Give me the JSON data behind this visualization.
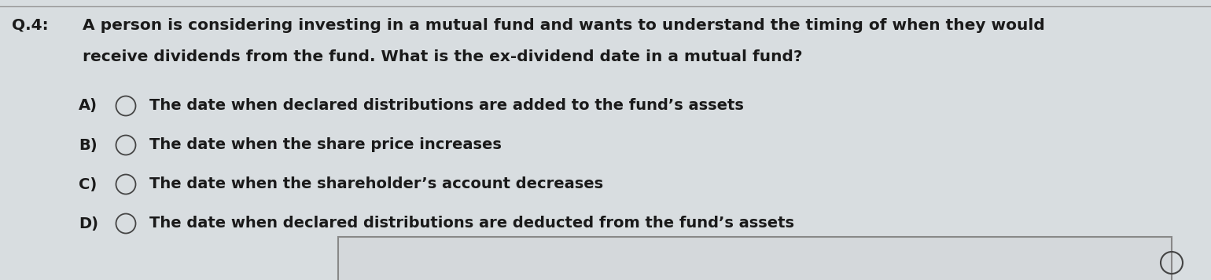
{
  "background_color": "#d8dde0",
  "question_label": "Q.4:",
  "question_text_line1": "A person is considering investing in a mutual fund and wants to understand the timing of when they would",
  "question_text_line2": "receive dividends from the fund. What is the ex-dividend date in a mutual fund?",
  "options": [
    {
      "label": "A)",
      "text": "The date when declared distributions are added to the fund’s assets"
    },
    {
      "label": "B)",
      "text": "The date when the share price increases"
    },
    {
      "label": "C)",
      "text": "The date when the shareholder’s account decreases"
    },
    {
      "label": "D)",
      "text": "The date when declared distributions are deducted from the fund’s assets"
    }
  ],
  "font_color": "#1a1a1a",
  "font_family": "DejaVu Sans",
  "question_fontsize": 14.5,
  "option_fontsize": 14.0,
  "top_line_color": "#999999"
}
